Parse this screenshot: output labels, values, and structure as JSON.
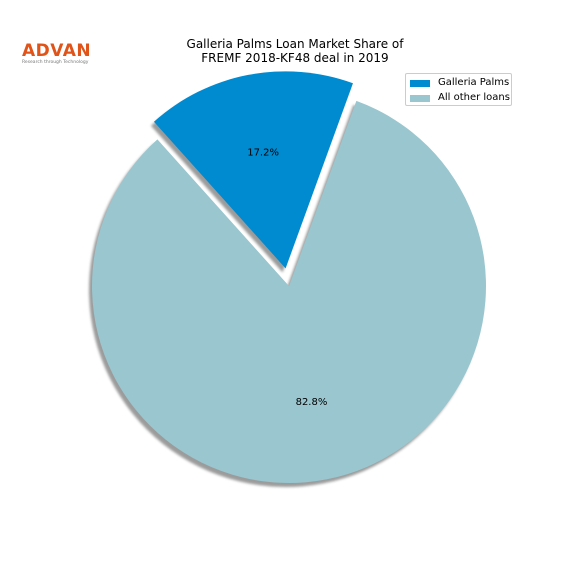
{
  "logo": {
    "name": "ADVAN",
    "tagline": "Research through Technology",
    "color": "#e0541a"
  },
  "chart_data": {
    "type": "pie",
    "title": "Galleria Palms Loan Market Share of FREMF 2018-KF48 deal in 2019",
    "title_lines": [
      "Galleria Palms Loan Market Share of",
      "FREMF 2018-KF48 deal in 2019"
    ],
    "slices": [
      {
        "label": "Galleria Palms",
        "value": 17.2,
        "display": "17.2%",
        "color": "#008ad0",
        "exploded": true
      },
      {
        "label": "All other loans",
        "value": 82.8,
        "display": "82.8%",
        "color": "#99c6cf",
        "exploded": false
      }
    ],
    "start_angle_deg": 70,
    "shadow": true,
    "legend_position": "top-right"
  }
}
